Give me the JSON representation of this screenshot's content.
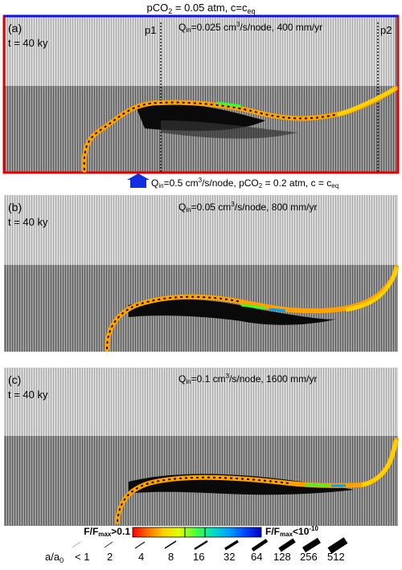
{
  "top_boundary": {
    "text": "pCO",
    "sub": "2",
    "rest": " = 0.05 atm, c=c",
    "sub2": "eq"
  },
  "bottom_boundary": {
    "q": "Q",
    "qsub": "in",
    "a": "=0.5 cm",
    "asup": "3",
    "b": "/s/node, pCO",
    "bsub": "2",
    "c": " = 0.2 atm, c = c",
    "csub": "eq"
  },
  "profile_markers": [
    "p1",
    "p2"
  ],
  "panels": [
    {
      "label": "(a)",
      "time": "t = 40 ky",
      "q": "Q",
      "qsub": "in",
      "rate": "=0.025 cm",
      "sup": "3",
      "tail": "/s/node, 400 mm/yr"
    },
    {
      "label": "(b)",
      "time": "t = 40 ky",
      "q": "Q",
      "qsub": "in",
      "rate": "=0.05 cm",
      "sup": "3",
      "tail": "/s/node, 800 mm/yr"
    },
    {
      "label": "(c)",
      "time": "t = 40 ky",
      "q": "Q",
      "qsub": "in",
      "rate": "=0.1 cm",
      "sup": "3",
      "tail": "/s/node, 1600 mm/yr"
    }
  ],
  "colorbar": {
    "left": {
      "a": "F/F",
      "sub": "max",
      "b": ">0.1"
    },
    "right": {
      "a": "F/F",
      "sub": "max",
      "b": "<10",
      "sup": "-10"
    },
    "colors": [
      "#ff0000",
      "#ff8000",
      "#ffd000",
      "#e0ff00",
      "#40ff40",
      "#00e0c0",
      "#00a0ff",
      "#0040ff",
      "#0000c0"
    ]
  },
  "legend": {
    "label": "a/a",
    "label_sub": "0",
    "items": [
      "< 1",
      "2",
      "4",
      "8",
      "16",
      "32",
      "64",
      "128",
      "256",
      "512"
    ]
  }
}
